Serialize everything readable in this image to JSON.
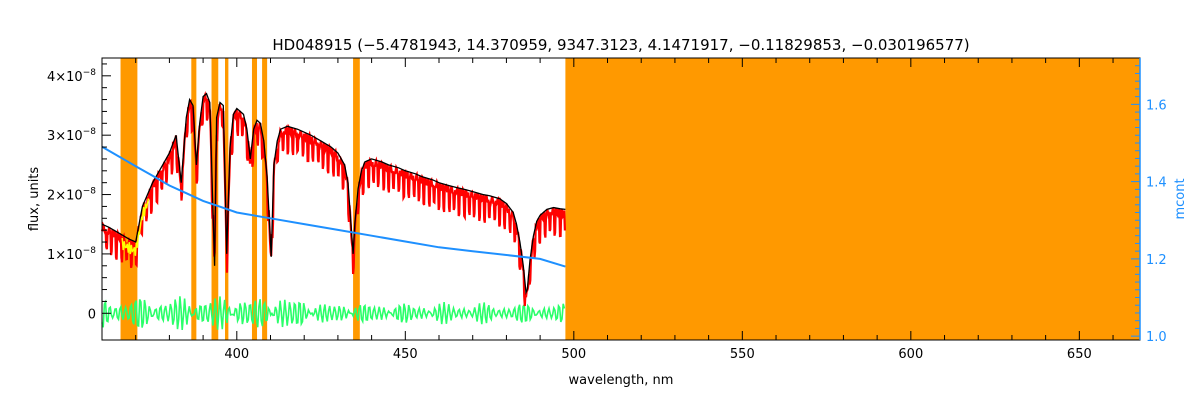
{
  "chart_data": {
    "type": "line",
    "title": "HD048915   (−5.4781943, 14.370959, 9347.3123, 4.1471917, −0.11829853, −0.030196577)",
    "xlabel": "wavelength, nm",
    "ylabel": "flux, units",
    "y2label": "mcont",
    "xlim": [
      360,
      668
    ],
    "ylim": [
      -4.5e-09,
      4.3e-08
    ],
    "y2lim": [
      0.99,
      1.72
    ],
    "x_ticks": [
      {
        "value": 400,
        "label": "400"
      },
      {
        "value": 450,
        "label": "450"
      },
      {
        "value": 500,
        "label": "500"
      },
      {
        "value": 550,
        "label": "550"
      },
      {
        "value": 600,
        "label": "600"
      },
      {
        "value": 650,
        "label": "650"
      }
    ],
    "y_ticks": [
      {
        "value": 0,
        "label": "0",
        "exp": ""
      },
      {
        "value": 1e-08,
        "label": "1×10",
        "exp": "−8"
      },
      {
        "value": 2e-08,
        "label": "2×10",
        "exp": "−8"
      },
      {
        "value": 3e-08,
        "label": "3×10",
        "exp": "−8"
      },
      {
        "value": 4e-08,
        "label": "4×10",
        "exp": "−8"
      }
    ],
    "y2_ticks": [
      {
        "value": 1.0,
        "label": "1.0"
      },
      {
        "value": 1.2,
        "label": "1.2"
      },
      {
        "value": 1.4,
        "label": "1.4"
      },
      {
        "value": 1.6,
        "label": "1.6"
      }
    ],
    "masked_regions": [
      [
        365.5,
        370.5
      ],
      [
        386.5,
        388
      ],
      [
        392.5,
        394.5
      ],
      [
        396.5,
        397.5
      ],
      [
        404.5,
        406
      ],
      [
        407.5,
        409
      ],
      [
        434.5,
        436.5
      ],
      [
        497.5,
        668
      ]
    ],
    "colors": {
      "observed": "#000000",
      "model": "#ff0000",
      "highlight": "#ffff00",
      "continuum": "#1e90ff",
      "residual": "#2aff6a",
      "mask": "#ff9900",
      "right_axis": "#1e90ff"
    },
    "series": [
      {
        "role": "observed",
        "x": [
          360,
          362,
          365,
          368,
          370,
          372,
          375,
          378,
          380,
          382,
          383.5,
          385,
          386,
          387,
          388,
          389,
          390,
          391,
          392,
          393.4,
          394,
          395,
          396,
          397,
          398,
          399,
          400,
          401,
          402,
          403,
          404,
          405,
          406,
          407,
          408,
          409,
          410.2,
          411,
          412,
          413,
          415,
          418,
          420,
          422,
          425,
          428,
          430,
          432,
          433,
          434,
          434.5,
          435,
          436,
          437,
          438,
          440,
          443,
          445,
          448,
          450,
          453,
          455,
          458,
          460,
          463,
          465,
          468,
          470,
          473,
          475,
          478,
          480,
          482,
          483,
          484,
          485,
          485.8,
          486.2,
          487,
          488,
          489,
          490,
          492,
          494,
          496,
          497.5
        ],
        "y": [
          1.5e-08,
          1.45e-08,
          1.35e-08,
          1.25e-08,
          1.2e-08,
          1.8e-08,
          2.2e-08,
          2.5e-08,
          2.7e-08,
          3e-08,
          2.2e-08,
          3.3e-08,
          3.6e-08,
          3.5e-08,
          2.5e-08,
          3.2e-08,
          3.65e-08,
          3.7e-08,
          3.55e-08,
          8e-09,
          3.3e-08,
          3.55e-08,
          3.5e-08,
          1e-08,
          2.8e-08,
          3.35e-08,
          3.45e-08,
          3.4e-08,
          3.35e-08,
          3.1e-08,
          2.6e-08,
          3.1e-08,
          3.25e-08,
          3.2e-08,
          2.9e-08,
          2.3e-08,
          9.5e-09,
          2.5e-08,
          2.9e-08,
          3.1e-08,
          3.15e-08,
          3.1e-08,
          3.05e-08,
          3e-08,
          2.9e-08,
          2.8e-08,
          2.7e-08,
          2.5e-08,
          2.2e-08,
          1.4e-08,
          1e-08,
          1.5e-08,
          2.1e-08,
          2.4e-08,
          2.55e-08,
          2.6e-08,
          2.55e-08,
          2.5e-08,
          2.45e-08,
          2.4e-08,
          2.35e-08,
          2.3e-08,
          2.25e-08,
          2.2e-08,
          2.15e-08,
          2.12e-08,
          2.08e-08,
          2.05e-08,
          2e-08,
          1.98e-08,
          1.93e-08,
          1.85e-08,
          1.7e-08,
          1.5e-08,
          1.2e-08,
          8e-09,
          3.5e-09,
          4e-09,
          9e-09,
          1.3e-08,
          1.55e-08,
          1.65e-08,
          1.75e-08,
          1.78e-08,
          1.76e-08,
          1.75e-08
        ]
      },
      {
        "role": "continuum",
        "axis": "right",
        "x": [
          360,
          365,
          370,
          375,
          380,
          385,
          390,
          395,
          400,
          410,
          420,
          430,
          440,
          450,
          460,
          470,
          480,
          490,
          497.5
        ],
        "y": [
          1.49,
          1.465,
          1.44,
          1.415,
          1.39,
          1.37,
          1.35,
          1.335,
          1.32,
          1.305,
          1.29,
          1.275,
          1.26,
          1.245,
          1.23,
          1.22,
          1.21,
          1.2,
          1.18
        ]
      }
    ]
  }
}
